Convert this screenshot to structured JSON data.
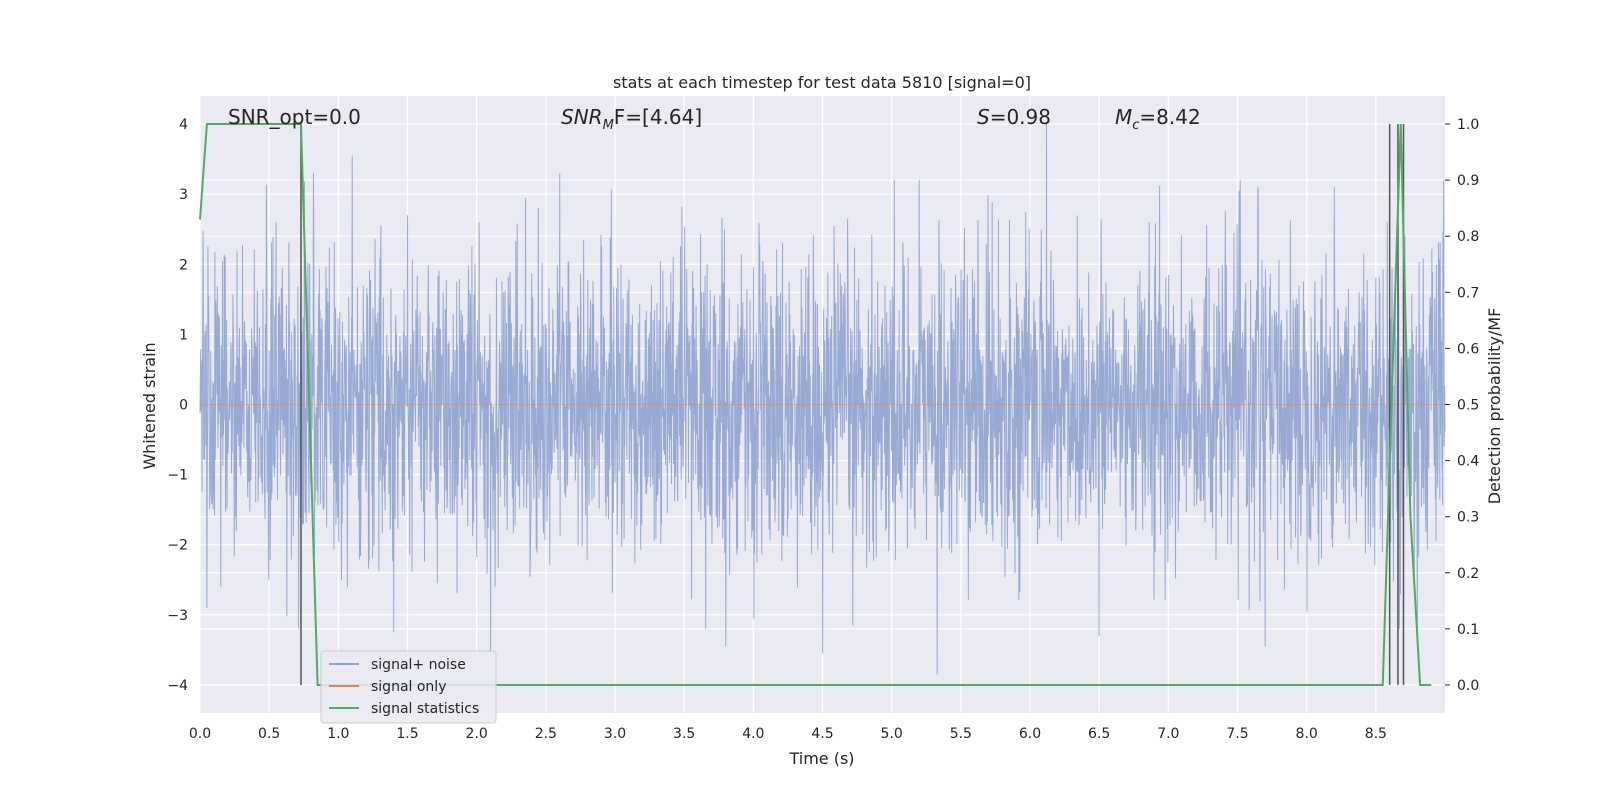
{
  "chart_data": {
    "type": "line",
    "title": "stats at each timestep for test data 5810 [signal=0]",
    "xlabel": "Time (s)",
    "ylabel": "Whitened strain",
    "ylabel_right": "Detection probability/MF",
    "xlim": [
      0.0,
      9.0
    ],
    "ylim": [
      -4.4,
      4.4
    ],
    "ylim_right": [
      -0.05,
      1.05
    ],
    "x_ticks": [
      "0.0",
      "0.5",
      "1.0",
      "1.5",
      "2.0",
      "2.5",
      "3.0",
      "3.5",
      "4.0",
      "4.5",
      "5.0",
      "5.5",
      "6.0",
      "6.5",
      "7.0",
      "7.5",
      "8.0",
      "8.5"
    ],
    "y_ticks": [
      "4",
      "3",
      "2",
      "1",
      "0",
      "−1",
      "−2",
      "−3",
      "−4"
    ],
    "y_ticks_right": [
      "1.0",
      "0.9",
      "0.8",
      "0.7",
      "0.6",
      "0.5",
      "0.4",
      "0.3",
      "0.2",
      "0.1",
      "0.0"
    ],
    "grid": true,
    "legend_position": "lower-left",
    "annotations": {
      "snr_opt": "SNR_opt=0.0",
      "snr_mf_main": "SNR",
      "snr_mf_sub": "M",
      "snr_mf_rest": "F=[4.64]",
      "s_main": "S",
      "s_rest": "=0.98",
      "mc_main": "M",
      "mc_sub": "c",
      "mc_rest": "=8.42"
    },
    "series": [
      {
        "name": "signal+ noise",
        "color": "#8fa3cf",
        "description_values": "whitened strain noise, approx. Gaussian with std ~1, range -3.9 to 4.0",
        "noise_std": 1.0,
        "peaks": [
          [
            0.15,
            3.0
          ],
          [
            0.55,
            2.6
          ],
          [
            0.82,
            3.3
          ],
          [
            1.1,
            3.55
          ],
          [
            1.5,
            2.7
          ],
          [
            2.6,
            3.3
          ],
          [
            4.5,
            3.2
          ],
          [
            5.2,
            3.2
          ],
          [
            6.12,
            4.0
          ],
          [
            7.65,
            3.1
          ],
          [
            8.2,
            3.1
          ]
        ],
        "troughs": [
          [
            0.05,
            -2.9
          ],
          [
            0.15,
            -2.6
          ],
          [
            1.4,
            -3.25
          ],
          [
            2.1,
            -3.55
          ],
          [
            3.8,
            -3.45
          ],
          [
            4.5,
            -3.55
          ],
          [
            5.33,
            -3.85
          ],
          [
            6.5,
            -3.3
          ],
          [
            7.7,
            -3.45
          ],
          [
            8.8,
            -3.25
          ]
        ]
      },
      {
        "name": "signal only",
        "color": "#dd8452",
        "x": [
          0.0,
          9.0
        ],
        "y": [
          0.0,
          0.0
        ]
      },
      {
        "name": "signal statistics",
        "color": "#55a868",
        "axis": "right",
        "x": [
          0.0,
          0.05,
          0.1,
          0.2,
          0.4,
          0.6,
          0.73,
          0.85,
          0.9,
          4.4,
          8.55,
          8.62,
          8.68,
          8.75,
          8.82,
          8.9
        ],
        "y": [
          0.83,
          1.0,
          1.0,
          1.0,
          1.0,
          1.0,
          1.0,
          0.0,
          0.0,
          0.0,
          0.0,
          0.55,
          1.0,
          0.3,
          0.0,
          0.0
        ]
      }
    ],
    "vertical_markers": {
      "color": "#555555",
      "x": [
        0.73,
        8.6,
        8.66,
        8.7
      ],
      "y_range": [
        -4.0,
        4.0
      ]
    }
  }
}
